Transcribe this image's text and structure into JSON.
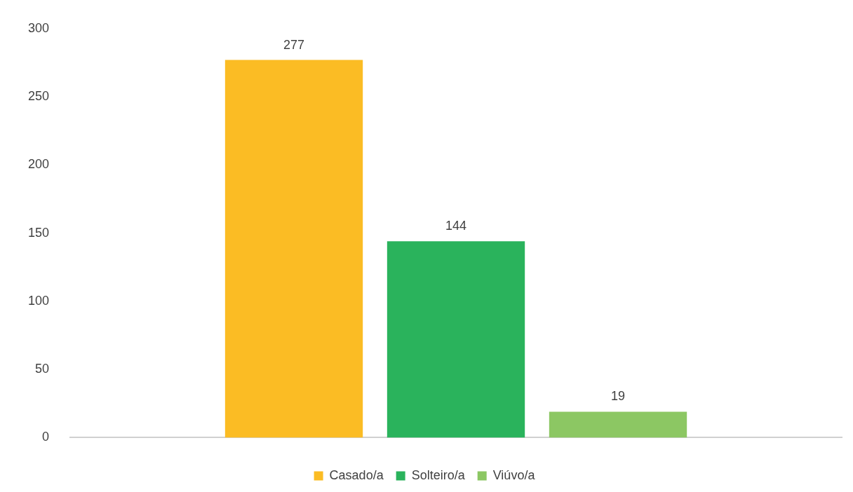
{
  "chart_data": {
    "type": "bar",
    "categories": [
      null
    ],
    "series": [
      {
        "name": "Casado/a",
        "color": "#fbbc24",
        "values": [
          277
        ]
      },
      {
        "name": "Solteiro/a",
        "color": "#2ab35c",
        "values": [
          144
        ]
      },
      {
        "name": "Viúvo/a",
        "color": "#8cc763",
        "values": [
          19
        ]
      }
    ],
    "ylim": [
      0,
      300
    ],
    "yticks": [
      0,
      50,
      100,
      150,
      200,
      250,
      300
    ],
    "grid": false,
    "legend": "bottom",
    "data_labels": true
  }
}
